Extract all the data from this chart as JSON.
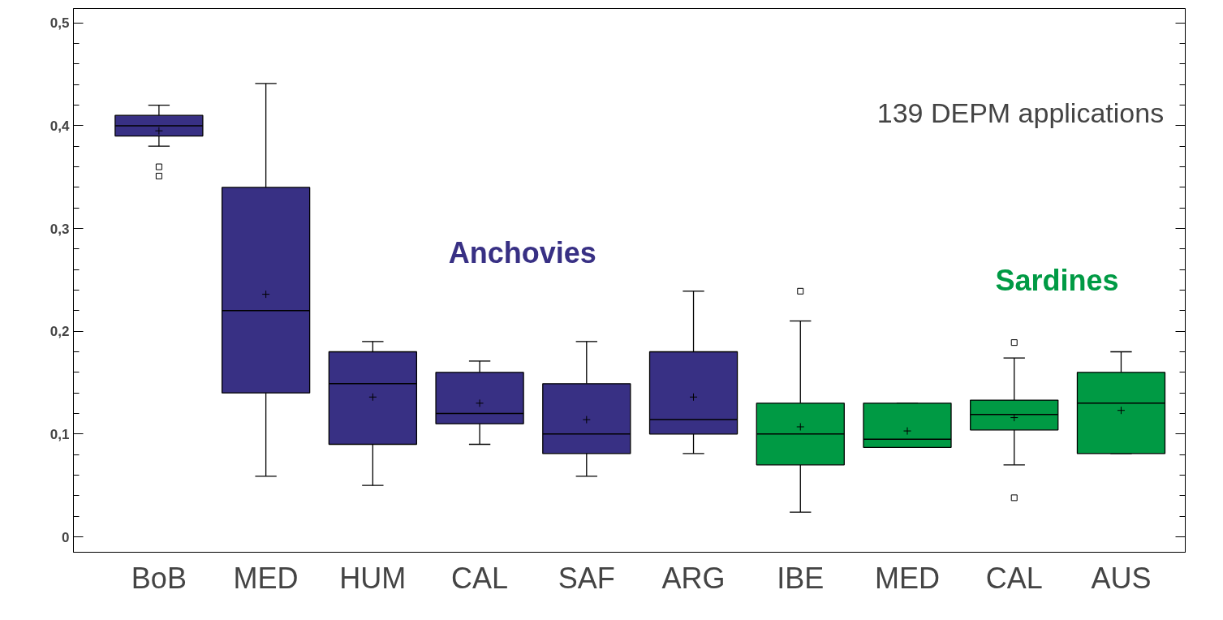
{
  "chart_data": {
    "type": "box",
    "categories": [
      "BoB",
      "MED",
      "HUM",
      "CAL",
      "SAF",
      "ARG",
      "IBE",
      "MED",
      "CAL",
      "AUS"
    ],
    "ylim": [
      -0.015,
      0.514
    ],
    "yticks": [
      {
        "value": 0,
        "label": "0"
      },
      {
        "value": 0.1,
        "label": "0,1"
      },
      {
        "value": 0.2,
        "label": "0,2"
      },
      {
        "value": 0.3,
        "label": "0,3"
      },
      {
        "value": 0.4,
        "label": "0,4"
      },
      {
        "value": 0.5,
        "label": "0,5"
      }
    ],
    "grid": false,
    "marker": "square",
    "annotations": [
      "139 DEPM applications"
    ],
    "series": [
      {
        "name": "Anchovies",
        "color": "#383084",
        "boxes": [
          {
            "low": 0.38,
            "q1": 0.39,
            "median": 0.4,
            "q3": 0.41,
            "high": 0.42,
            "mean": 0.395,
            "outliers": [
              0.36,
              0.351
            ]
          },
          {
            "low": 0.059,
            "q1": 0.14,
            "median": 0.22,
            "q3": 0.34,
            "high": 0.441,
            "mean": 0.236
          },
          {
            "low": 0.05,
            "q1": 0.09,
            "median": 0.149,
            "q3": 0.18,
            "high": 0.19,
            "mean": 0.136
          },
          {
            "low": 0.09,
            "q1": 0.11,
            "median": 0.12,
            "q3": 0.16,
            "high": 0.171,
            "mean": 0.13
          },
          {
            "low": 0.059,
            "q1": 0.081,
            "median": 0.1,
            "q3": 0.149,
            "high": 0.19,
            "mean": 0.114
          },
          {
            "low": 0.081,
            "q1": 0.1,
            "median": 0.114,
            "q3": 0.18,
            "high": 0.239,
            "mean": 0.136
          },
          null,
          null,
          null,
          null
        ]
      },
      {
        "name": "Sardines",
        "color": "#009a44",
        "boxes": [
          null,
          null,
          null,
          null,
          null,
          null,
          {
            "low": 0.024,
            "q1": 0.07,
            "median": 0.1,
            "q3": 0.13,
            "high": 0.21,
            "mean": 0.107,
            "outliers": [
              0.239
            ]
          },
          {
            "low": 0.087,
            "q1": 0.087,
            "median": 0.095,
            "q3": 0.13,
            "high": 0.13,
            "mean": 0.103
          },
          {
            "low": 0.07,
            "q1": 0.104,
            "median": 0.119,
            "q3": 0.133,
            "high": 0.174,
            "mean": 0.116,
            "outliers": [
              0.189,
              0.038
            ]
          },
          {
            "low": 0.081,
            "q1": 0.081,
            "median": 0.13,
            "q3": 0.16,
            "high": 0.18,
            "mean": 0.123
          }
        ]
      }
    ]
  }
}
